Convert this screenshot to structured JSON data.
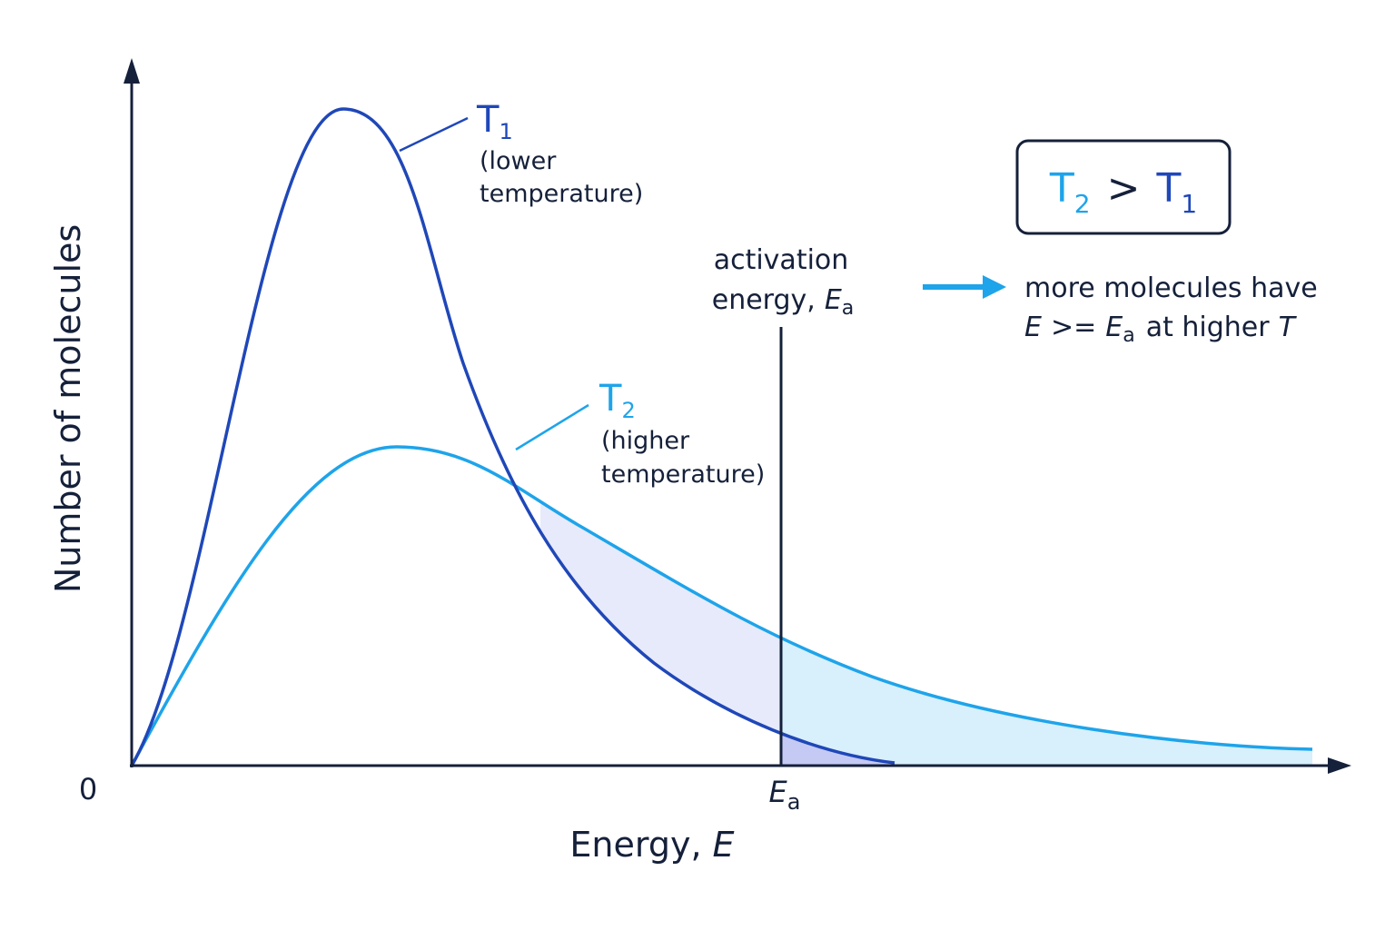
{
  "axes": {
    "y_label": "Number of molecules",
    "origin": "0",
    "x_label": {
      "text": "Energy,",
      "var": "E"
    },
    "ea_tick": {
      "var": "E",
      "sub": "a"
    }
  },
  "curves": [
    {
      "symbol": "T",
      "sub": "1",
      "note": [
        "(lower",
        "temperature)"
      ]
    },
    {
      "symbol": "T",
      "sub": "2",
      "note": [
        "(higher",
        "temperature)"
      ]
    }
  ],
  "activation": {
    "line1": "activation",
    "line2": "energy,",
    "var": "E",
    "sub": "a"
  },
  "comparison": {
    "left": {
      "symbol": "T",
      "sub": "2"
    },
    "op": ">",
    "right": {
      "symbol": "T",
      "sub": "1"
    }
  },
  "callout": {
    "line1": "more molecules have",
    "line2": {
      "var": "E",
      "op": ">=",
      "var2": "E",
      "sub": "a",
      "text": "at higher",
      "var3": "T"
    }
  }
}
